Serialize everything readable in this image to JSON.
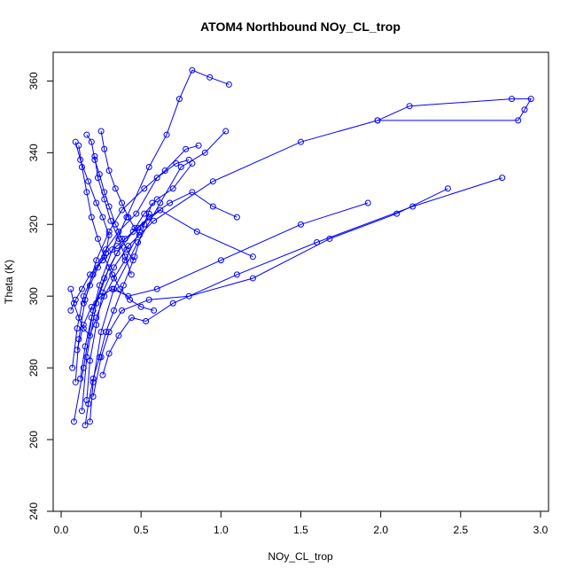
{
  "chart_data": {
    "type": "line",
    "title": "ATOM4 Northbound NOy_CL_trop",
    "xlabel": "NOy_CL_trop",
    "ylabel": "Theta (K)",
    "xlim": [
      -0.05,
      3.05
    ],
    "ylim": [
      240,
      368
    ],
    "x_ticks": [
      0.0,
      0.5,
      1.0,
      1.5,
      2.0,
      2.5,
      3.0
    ],
    "x_tick_labels": [
      "0.0",
      "0.5",
      "1.0",
      "1.5",
      "2.0",
      "2.5",
      "3.0"
    ],
    "y_ticks": [
      240,
      260,
      280,
      300,
      320,
      340,
      360
    ],
    "y_tick_labels": [
      "240",
      "260",
      "280",
      "300",
      "320",
      "340",
      "360"
    ],
    "color": "#0000ff",
    "marker": "open-circle",
    "series": [
      {
        "x": [
          0.08,
          0.14,
          0.2,
          0.27,
          0.35,
          0.45,
          0.52,
          0.6,
          0.7,
          0.82
        ],
        "y": [
          265,
          280,
          296,
          305,
          312,
          318,
          323,
          327,
          330,
          337
        ]
      },
      {
        "x": [
          0.13,
          0.16,
          0.22,
          0.3,
          0.4,
          0.55,
          0.68,
          0.82,
          0.95,
          1.1
        ],
        "y": [
          268,
          283,
          298,
          308,
          316,
          322,
          326,
          329,
          325,
          322
        ]
      },
      {
        "x": [
          0.18,
          0.2,
          0.25,
          0.33,
          0.48,
          0.62,
          0.75,
          0.9,
          1.03
        ],
        "y": [
          265,
          276,
          290,
          302,
          315,
          326,
          336,
          340,
          346
        ]
      },
      {
        "x": [
          0.09,
          0.11,
          0.15,
          0.22,
          0.3,
          0.38,
          0.52,
          0.65,
          0.78,
          0.86
        ],
        "y": [
          276,
          288,
          299,
          310,
          318,
          324,
          330,
          335,
          341,
          342
        ]
      },
      {
        "x": [
          0.07,
          0.1,
          0.14,
          0.2,
          0.28,
          0.36,
          0.47,
          0.6,
          0.72,
          0.8
        ],
        "y": [
          280,
          291,
          300,
          306,
          313,
          318,
          323,
          333,
          337,
          338
        ]
      },
      {
        "x": [
          0.12,
          0.15,
          0.19,
          0.24,
          0.32,
          0.41,
          0.55,
          0.66,
          0.74,
          0.82,
          0.93,
          1.05
        ],
        "y": [
          277,
          286,
          294,
          303,
          313,
          322,
          336,
          345,
          355,
          363,
          361,
          359
        ]
      },
      {
        "x": [
          0.06,
          0.09,
          0.13,
          0.18,
          0.26,
          0.35,
          0.48,
          0.62,
          0.85,
          1.2
        ],
        "y": [
          296,
          299,
          302,
          306,
          310,
          314,
          319,
          324,
          318,
          311
        ]
      },
      {
        "x": [
          0.16,
          0.18,
          0.22,
          0.26,
          0.33,
          0.42,
          0.58,
          0.95,
          1.5,
          1.98,
          2.18,
          2.82,
          2.94,
          2.9,
          2.86,
          1.98
        ],
        "y": [
          271,
          282,
          292,
          301,
          308,
          314,
          321,
          332,
          343,
          349,
          353,
          355,
          355,
          352,
          349,
          349
        ]
      },
      {
        "x": [
          0.1,
          0.14,
          0.19,
          0.25,
          0.32,
          0.42,
          0.6,
          1.0,
          1.5,
          1.92
        ],
        "y": [
          285,
          292,
          297,
          300,
          302,
          300,
          302,
          310,
          320,
          326
        ]
      },
      {
        "x": [
          0.2,
          0.25,
          0.3,
          0.38,
          0.55,
          0.8,
          1.2,
          1.68,
          2.1,
          2.42
        ],
        "y": [
          272,
          283,
          290,
          296,
          299,
          300,
          305,
          316,
          323,
          330
        ]
      },
      {
        "x": [
          0.26,
          0.3,
          0.36,
          0.44,
          0.53,
          0.7,
          1.1,
          1.6,
          2.2,
          2.76
        ],
        "y": [
          278,
          284,
          289,
          294,
          293,
          298,
          306,
          315,
          325,
          333
        ]
      },
      {
        "x": [
          0.09,
          0.12,
          0.17,
          0.22,
          0.26,
          0.3,
          0.28,
          0.23,
          0.18,
          0.14
        ],
        "y": [
          343,
          338,
          332,
          326,
          322,
          317,
          312,
          308,
          303,
          298
        ]
      },
      {
        "x": [
          0.16,
          0.19,
          0.21,
          0.24,
          0.27,
          0.3,
          0.34,
          0.38,
          0.41,
          0.45
        ],
        "y": [
          345,
          343,
          338,
          334,
          329,
          325,
          320,
          316,
          313,
          310
        ]
      },
      {
        "x": [
          0.11,
          0.13,
          0.16,
          0.19,
          0.23,
          0.27,
          0.32,
          0.37,
          0.43,
          0.5,
          0.58
        ],
        "y": [
          342,
          336,
          329,
          322,
          316,
          311,
          306,
          302,
          299,
          297,
          296
        ]
      },
      {
        "x": [
          0.25,
          0.27,
          0.3,
          0.34,
          0.38,
          0.42,
          0.46,
          0.49
        ],
        "y": [
          346,
          341,
          335,
          330,
          326,
          322,
          319,
          317
        ]
      },
      {
        "x": [
          0.06,
          0.08,
          0.11,
          0.14,
          0.18,
          0.22,
          0.27,
          0.33,
          0.4,
          0.49,
          0.55
        ],
        "y": [
          302,
          298,
          294,
          291,
          289,
          294,
          300,
          305,
          310,
          318,
          323
        ]
      },
      {
        "x": [
          0.15,
          0.17,
          0.2,
          0.24,
          0.28,
          0.33,
          0.39,
          0.46,
          0.52,
          0.57
        ],
        "y": [
          264,
          270,
          277,
          283,
          290,
          296,
          303,
          311,
          320,
          326
        ]
      },
      {
        "x": [
          0.21,
          0.23,
          0.27,
          0.31,
          0.36,
          0.4,
          0.44
        ],
        "y": [
          339,
          333,
          327,
          321,
          316,
          311,
          306
        ]
      }
    ]
  }
}
